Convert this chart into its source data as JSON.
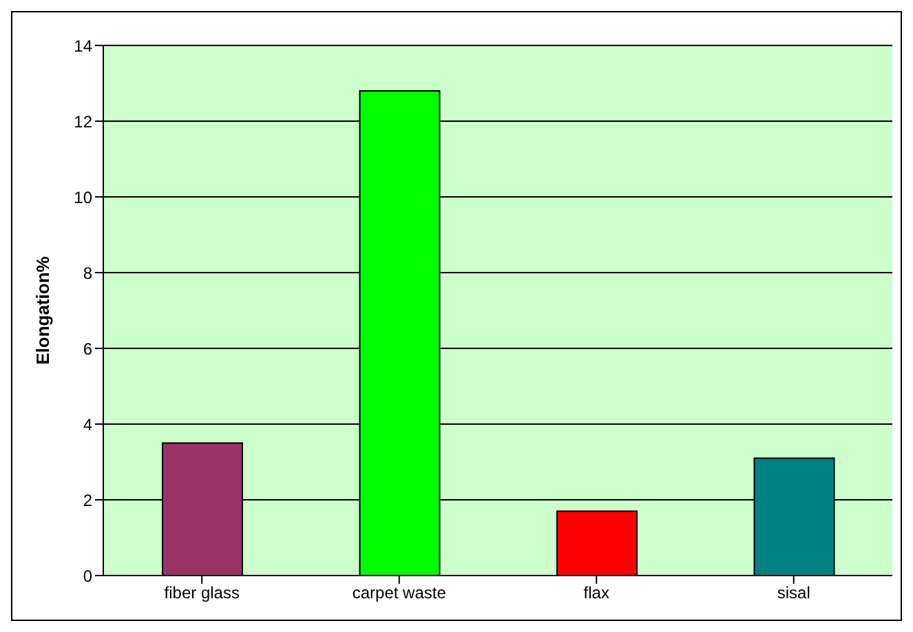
{
  "chart_data": {
    "type": "bar",
    "ylabel": "Elongation%",
    "categories": [
      "fiber glass",
      "carpet waste",
      "flax",
      "sisal"
    ],
    "values": [
      3.5,
      12.8,
      1.7,
      3.1
    ],
    "colors": [
      "#993366",
      "#00ff00",
      "#ff0000",
      "#008080"
    ],
    "ylim": [
      0,
      14
    ],
    "yticks": [
      0,
      2,
      4,
      6,
      8,
      10,
      12,
      14
    ],
    "grid": "y",
    "legend": false
  }
}
